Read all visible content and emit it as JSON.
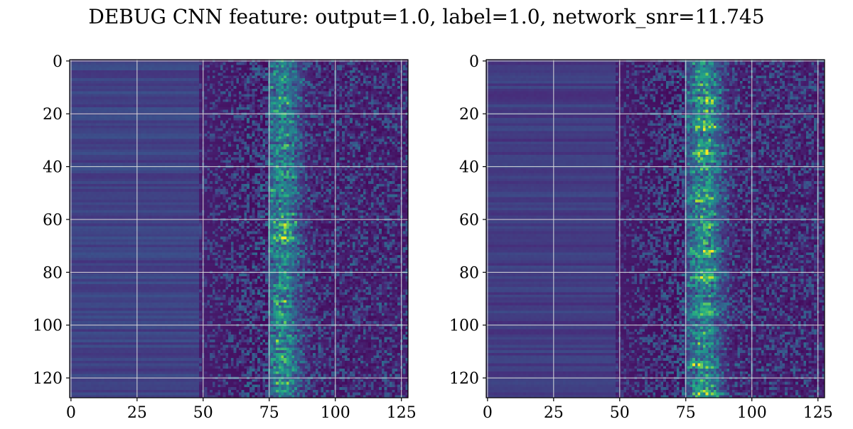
{
  "figure": {
    "title": "DEBUG CNN feature: output=1.0, label=1.0, network_snr=11.745"
  },
  "chart_data": [
    {
      "type": "heatmap",
      "title": "",
      "xlabel": "",
      "ylabel": "",
      "colormap": "viridis",
      "matrix_size": [
        128,
        128
      ],
      "xlim": [
        -0.5,
        127.5
      ],
      "ylim": [
        127.5,
        -0.5
      ],
      "x_ticks": [
        0,
        25,
        50,
        75,
        100,
        125
      ],
      "x_tick_labels": [
        "0",
        "25",
        "50",
        "75",
        "100",
        "125"
      ],
      "y_ticks": [
        0,
        20,
        40,
        60,
        80,
        100,
        120
      ],
      "y_tick_labels": [
        "0",
        "20",
        "40",
        "60",
        "80",
        "100",
        "120"
      ],
      "grid": true,
      "description_of_values": {
        "value_range": [
          0,
          1
        ],
        "flat_band_columns": [
          0,
          48
        ],
        "flat_band_value": 0.2,
        "dark_trough_columns": [
          50,
          75
        ],
        "bright_ridge_column": 80,
        "peak_rows": [
          62,
          67
        ],
        "noise_columns": [
          85,
          127
        ]
      }
    },
    {
      "type": "heatmap",
      "title": "",
      "xlabel": "",
      "ylabel": "",
      "colormap": "viridis",
      "matrix_size": [
        128,
        128
      ],
      "xlim": [
        -0.5,
        127.5
      ],
      "ylim": [
        127.5,
        -0.5
      ],
      "x_ticks": [
        0,
        25,
        50,
        75,
        100,
        125
      ],
      "x_tick_labels": [
        "0",
        "25",
        "50",
        "75",
        "100",
        "125"
      ],
      "y_ticks": [
        0,
        20,
        40,
        60,
        80,
        100,
        120
      ],
      "y_tick_labels": [
        "0",
        "20",
        "40",
        "60",
        "80",
        "100",
        "120"
      ],
      "grid": true,
      "description_of_values": {
        "value_range": [
          0,
          1
        ],
        "flat_band_columns": [
          0,
          48
        ],
        "flat_band_value": 0.18,
        "dark_trough_columns": [
          50,
          75
        ],
        "bright_ridge_column": 82,
        "peak_rows": [
          15,
          25,
          35,
          52,
          72,
          82,
          95,
          115,
          126
        ],
        "noise_columns": [
          85,
          127
        ]
      }
    }
  ],
  "colors": {
    "background": "#ffffff",
    "grid": "#d9d9d9",
    "axes": "#000000"
  }
}
